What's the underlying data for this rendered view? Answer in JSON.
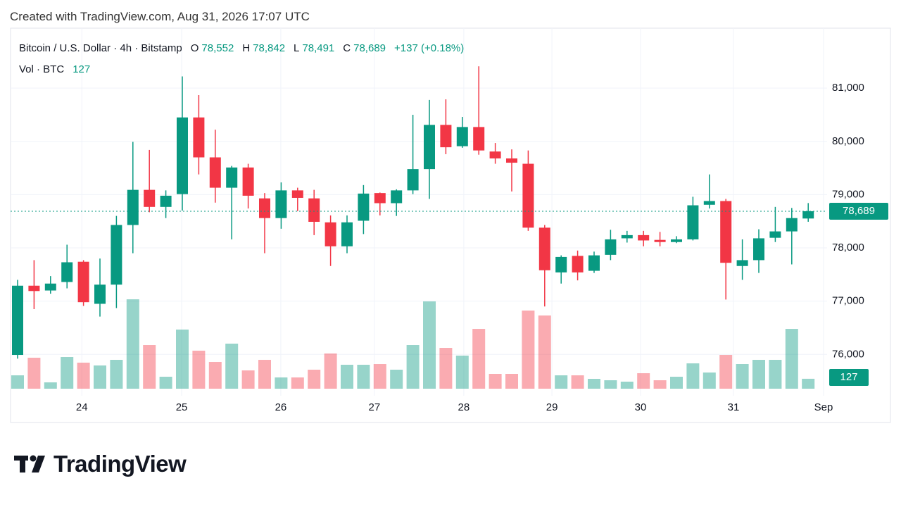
{
  "chart_data": {
    "type": "candlestick",
    "header": "Created with TradingView.com, Aug 31, 2026 17:07 UTC",
    "legend": {
      "symbol": "Bitcoin / U.S. Dollar · 4h · Bitstamp",
      "open_label": "O",
      "open_value": "78,552",
      "high_label": "H",
      "high_value": "78,842",
      "low_label": "L",
      "low_value": "78,491",
      "close_label": "C",
      "close_value": "78,689",
      "change": "+137 (+0.18%)",
      "volume_name": "Vol · BTC",
      "volume_value": "127"
    },
    "brand": "TradingView",
    "up_color": "#089981",
    "down_color": "#f23645",
    "open": [
      75990,
      77290,
      77200,
      77360,
      77740,
      76950,
      77310,
      78430,
      79090,
      78770,
      79010,
      80450,
      79700,
      79130,
      79510,
      78930,
      78560,
      79080,
      78930,
      78480,
      78030,
      78510,
      79030,
      78840,
      79080,
      79480,
      80310,
      79910,
      80270,
      79810,
      79680,
      79580,
      78380,
      77540,
      77850,
      77570,
      77870,
      78180,
      78240,
      78150,
      78110,
      78160,
      78810,
      78880,
      77660,
      77770,
      78190,
      78310,
      78552
    ],
    "high": [
      77400,
      77770,
      77470,
      78060,
      77770,
      77800,
      78600,
      79990,
      79840,
      79080,
      81220,
      80870,
      80220,
      79540,
      79580,
      79030,
      79230,
      79130,
      79090,
      78610,
      78610,
      79180,
      79040,
      79100,
      80500,
      80780,
      80790,
      80460,
      81410,
      79970,
      79850,
      79830,
      78430,
      77860,
      77950,
      77930,
      78340,
      78320,
      78320,
      78300,
      78220,
      78960,
      79380,
      78920,
      78160,
      78350,
      78770,
      78750,
      78842
    ],
    "low": [
      75920,
      76850,
      77140,
      77240,
      76910,
      76710,
      76870,
      77900,
      78670,
      78560,
      78700,
      79380,
      78850,
      78160,
      78740,
      77900,
      78360,
      78690,
      78240,
      77660,
      77900,
      78260,
      78610,
      78600,
      79010,
      78920,
      79760,
      79880,
      79750,
      79580,
      79060,
      78320,
      76900,
      77330,
      77390,
      77530,
      77770,
      78100,
      78030,
      78030,
      78090,
      78140,
      78740,
      77030,
      77400,
      77530,
      78110,
      77690,
      78491
    ],
    "close": [
      77290,
      77190,
      77330,
      77730,
      76980,
      77310,
      78430,
      79090,
      78770,
      78980,
      80450,
      79700,
      79130,
      79510,
      78980,
      78560,
      79080,
      78940,
      78490,
      78030,
      78480,
      79020,
      78840,
      79080,
      79480,
      80310,
      79890,
      80270,
      79830,
      79680,
      79600,
      78380,
      77580,
      77830,
      77540,
      77860,
      78160,
      78240,
      78140,
      78110,
      78160,
      78800,
      78880,
      77720,
      77770,
      78180,
      78310,
      78560,
      78689
    ],
    "volume": [
      171,
      396,
      81,
      405,
      333,
      297,
      369,
      1143,
      558,
      153,
      756,
      486,
      342,
      576,
      234,
      369,
      144,
      144,
      243,
      450,
      306,
      306,
      315,
      243,
      558,
      1116,
      522,
      423,
      765,
      189,
      189,
      999,
      936,
      171,
      171,
      126,
      108,
      90,
      198,
      108,
      153,
      324,
      207,
      432,
      315,
      369,
      369,
      765,
      127
    ],
    "ylim": [
      75250,
      82100
    ],
    "yticks": [
      {
        "value": 76000,
        "label": "76,000"
      },
      {
        "value": 77000,
        "label": "77,000"
      },
      {
        "value": 78000,
        "label": "78,000"
      },
      {
        "value": 79000,
        "label": "79,000"
      },
      {
        "value": 80000,
        "label": "80,000"
      },
      {
        "value": 81000,
        "label": "81,000"
      }
    ],
    "y2lim": [
      0,
      1300
    ],
    "xticks": [
      {
        "value": 3.9,
        "label": "24"
      },
      {
        "value": 9.96,
        "label": "25"
      },
      {
        "value": 15.98,
        "label": "26"
      },
      {
        "value": 21.66,
        "label": "27"
      },
      {
        "value": 27.09,
        "label": "28"
      },
      {
        "value": 32.44,
        "label": "29"
      },
      {
        "value": 37.82,
        "label": "30"
      },
      {
        "value": 43.46,
        "label": "31"
      },
      {
        "value": 48.93,
        "label": "Sep"
      }
    ],
    "last_price_label": "78,689",
    "last_volume_label": "127",
    "grid": true
  }
}
